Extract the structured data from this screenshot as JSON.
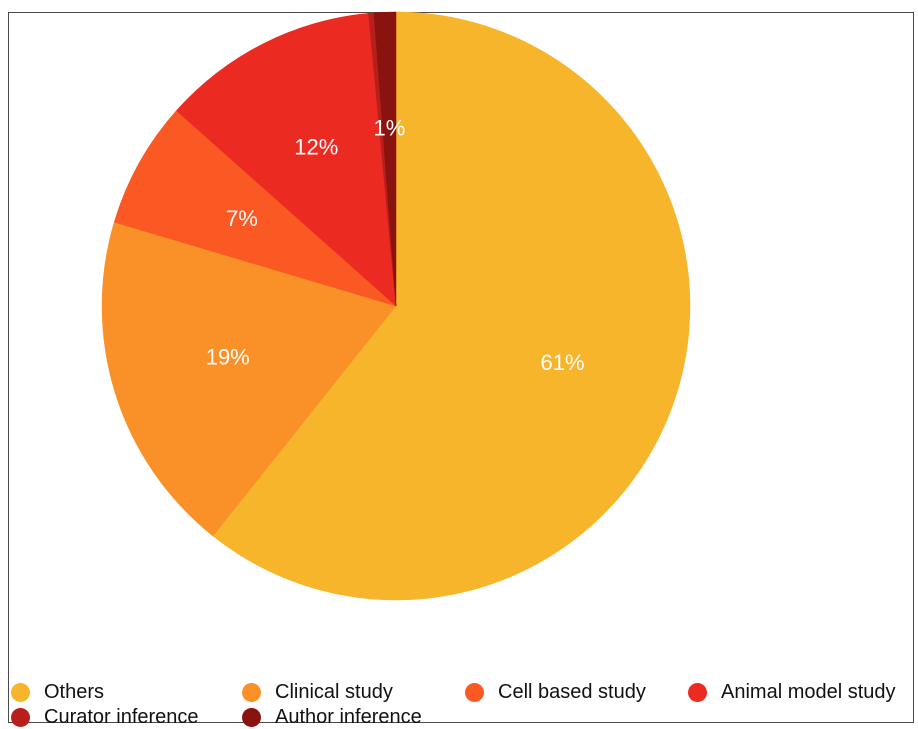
{
  "chart_data": {
    "type": "pie",
    "title": "",
    "slices": [
      {
        "label": "Others",
        "value": 61,
        "display": "61%",
        "color": "#F7B52C"
      },
      {
        "label": "Clinical study",
        "value": 19,
        "display": "19%",
        "color": "#FA9128"
      },
      {
        "label": "Cell based study",
        "value": 7,
        "display": "7%",
        "color": "#FA5923"
      },
      {
        "label": "Animal model study",
        "value": 12,
        "display": "12%",
        "color": "#EB2B22"
      },
      {
        "label": "Curator inference",
        "value": 0.3,
        "display": "",
        "color": "#B71F1C"
      },
      {
        "label": "Author inference",
        "value": 1.2,
        "display": "1%",
        "color": "#8A120F"
      }
    ],
    "start_angle": "12 o'clock",
    "direction": "clockwise",
    "legend": "bottom"
  }
}
